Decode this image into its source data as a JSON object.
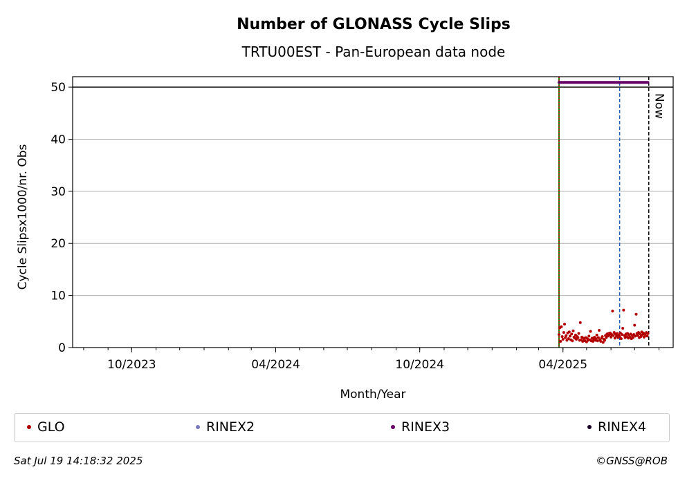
{
  "chart_data": {
    "type": "scatter",
    "title": "Number of GLONASS Cycle Slips",
    "subtitle": "TRTU00EST - Pan-European data node",
    "xlabel": "Month/Year",
    "ylabel": "Cycle Slipsx1000/nr. Obs",
    "xlim": [
      "2023-07-18",
      "2025-08-19"
    ],
    "ylim": [
      0,
      52
    ],
    "yticks": [
      0,
      10,
      20,
      30,
      40,
      50
    ],
    "xticks": [
      {
        "date": "2023-10-01",
        "label": "10/2023"
      },
      {
        "date": "2024-04-01",
        "label": "04/2024"
      },
      {
        "date": "2024-10-01",
        "label": "10/2024"
      },
      {
        "date": "2025-04-01",
        "label": "04/2025"
      }
    ],
    "grid": "horizontal",
    "hlines": [
      {
        "y": 50,
        "color": "#000000"
      }
    ],
    "vlines": [
      {
        "date": "2025-03-27",
        "color": "#008000",
        "style": "solid"
      },
      {
        "date": "2025-03-27",
        "color": "#cc0000",
        "style": "dotted"
      },
      {
        "date": "2025-06-12",
        "color": "#1f5fbf",
        "style": "dashed"
      },
      {
        "date": "2025-07-19",
        "color": "#000000",
        "style": "dashed",
        "label": "Now"
      }
    ],
    "legend_position": "bottom",
    "series": [
      {
        "name": "GLO",
        "color": "#b30000",
        "points": [
          [
            "2025-03-27",
            2.5
          ],
          [
            "2025-03-28",
            3.8
          ],
          [
            "2025-03-29",
            1.2
          ],
          [
            "2025-03-30",
            4.0
          ],
          [
            "2025-03-31",
            2.1
          ],
          [
            "2025-04-01",
            1.6
          ],
          [
            "2025-04-02",
            2.9
          ],
          [
            "2025-04-03",
            4.5
          ],
          [
            "2025-04-04",
            1.9
          ],
          [
            "2025-04-05",
            2.3
          ],
          [
            "2025-04-06",
            1.4
          ],
          [
            "2025-04-07",
            2.8
          ],
          [
            "2025-04-08",
            1.7
          ],
          [
            "2025-04-09",
            3.0
          ],
          [
            "2025-04-10",
            2.2
          ],
          [
            "2025-04-11",
            1.5
          ],
          [
            "2025-04-12",
            2.6
          ],
          [
            "2025-04-13",
            1.3
          ],
          [
            "2025-04-14",
            3.2
          ],
          [
            "2025-04-15",
            2.0
          ],
          [
            "2025-04-16",
            1.8
          ],
          [
            "2025-04-17",
            2.4
          ],
          [
            "2025-04-18",
            1.6
          ],
          [
            "2025-04-19",
            2.1
          ],
          [
            "2025-04-20",
            1.9
          ],
          [
            "2025-04-21",
            2.7
          ],
          [
            "2025-04-22",
            1.4
          ],
          [
            "2025-04-23",
            4.8
          ],
          [
            "2025-04-24",
            1.5
          ],
          [
            "2025-04-25",
            2.0
          ],
          [
            "2025-04-26",
            1.2
          ],
          [
            "2025-04-27",
            1.8
          ],
          [
            "2025-04-28",
            1.6
          ],
          [
            "2025-04-29",
            1.3
          ],
          [
            "2025-04-30",
            1.9
          ],
          [
            "2025-05-01",
            1.1
          ],
          [
            "2025-05-02",
            1.7
          ],
          [
            "2025-05-03",
            1.4
          ],
          [
            "2025-05-04",
            2.2
          ],
          [
            "2025-05-05",
            1.5
          ],
          [
            "2025-05-06",
            3.1
          ],
          [
            "2025-05-07",
            1.3
          ],
          [
            "2025-05-08",
            1.8
          ],
          [
            "2025-05-09",
            1.2
          ],
          [
            "2025-05-10",
            1.6
          ],
          [
            "2025-05-11",
            2.0
          ],
          [
            "2025-05-12",
            1.4
          ],
          [
            "2025-05-13",
            1.7
          ],
          [
            "2025-05-14",
            2.4
          ],
          [
            "2025-05-15",
            1.3
          ],
          [
            "2025-05-16",
            1.9
          ],
          [
            "2025-05-17",
            3.3
          ],
          [
            "2025-05-18",
            1.5
          ],
          [
            "2025-05-19",
            1.2
          ],
          [
            "2025-05-20",
            1.8
          ],
          [
            "2025-05-21",
            2.1
          ],
          [
            "2025-05-22",
            1.0
          ],
          [
            "2025-05-23",
            1.6
          ],
          [
            "2025-05-24",
            1.4
          ],
          [
            "2025-05-25",
            2.3
          ],
          [
            "2025-05-26",
            1.9
          ],
          [
            "2025-05-27",
            2.6
          ],
          [
            "2025-05-28",
            2.2
          ],
          [
            "2025-05-29",
            2.7
          ],
          [
            "2025-05-30",
            2.4
          ],
          [
            "2025-05-31",
            2.8
          ],
          [
            "2025-06-01",
            2.0
          ],
          [
            "2025-06-02",
            2.5
          ],
          [
            "2025-06-03",
            7.0
          ],
          [
            "2025-06-04",
            2.3
          ],
          [
            "2025-06-05",
            2.9
          ],
          [
            "2025-06-06",
            1.8
          ],
          [
            "2025-06-07",
            2.6
          ],
          [
            "2025-06-08",
            2.2
          ],
          [
            "2025-06-09",
            2.7
          ],
          [
            "2025-06-10",
            1.9
          ],
          [
            "2025-06-11",
            2.4
          ],
          [
            "2025-06-12",
            2.1
          ],
          [
            "2025-06-13",
            2.8
          ],
          [
            "2025-06-14",
            1.7
          ],
          [
            "2025-06-15",
            2.5
          ],
          [
            "2025-06-16",
            3.7
          ],
          [
            "2025-06-17",
            7.2
          ],
          [
            "2025-06-18",
            2.3
          ],
          [
            "2025-06-19",
            1.9
          ],
          [
            "2025-06-20",
            2.6
          ],
          [
            "2025-06-21",
            2.1
          ],
          [
            "2025-06-22",
            2.7
          ],
          [
            "2025-06-23",
            1.8
          ],
          [
            "2025-06-24",
            2.4
          ],
          [
            "2025-06-25",
            2.0
          ],
          [
            "2025-06-26",
            2.6
          ],
          [
            "2025-06-27",
            1.7
          ],
          [
            "2025-06-28",
            2.3
          ],
          [
            "2025-06-29",
            1.9
          ],
          [
            "2025-06-30",
            2.5
          ],
          [
            "2025-07-01",
            4.3
          ],
          [
            "2025-07-02",
            2.2
          ],
          [
            "2025-07-03",
            6.4
          ],
          [
            "2025-07-04",
            2.7
          ],
          [
            "2025-07-05",
            2.3
          ],
          [
            "2025-07-06",
            2.9
          ],
          [
            "2025-07-07",
            1.9
          ],
          [
            "2025-07-08",
            2.6
          ],
          [
            "2025-07-09",
            2.1
          ],
          [
            "2025-07-10",
            3.0
          ],
          [
            "2025-07-11",
            2.4
          ],
          [
            "2025-07-12",
            2.8
          ],
          [
            "2025-07-13",
            2.0
          ],
          [
            "2025-07-14",
            2.6
          ],
          [
            "2025-07-15",
            2.3
          ],
          [
            "2025-07-16",
            2.9
          ],
          [
            "2025-07-17",
            2.2
          ],
          [
            "2025-07-18",
            2.7
          ]
        ]
      },
      {
        "name": "RINEX2",
        "color": "#7b7bc0",
        "points": []
      },
      {
        "name": "RINEX3",
        "color": "#660066",
        "value": 50.9,
        "date_range": [
          "2025-03-27",
          "2025-07-18"
        ]
      },
      {
        "name": "RINEX4",
        "color": "#1a0022",
        "points": []
      }
    ]
  },
  "footer": {
    "timestamp": "Sat Jul 19 14:18:32 2025",
    "credit": "©GNSS@ROB"
  }
}
